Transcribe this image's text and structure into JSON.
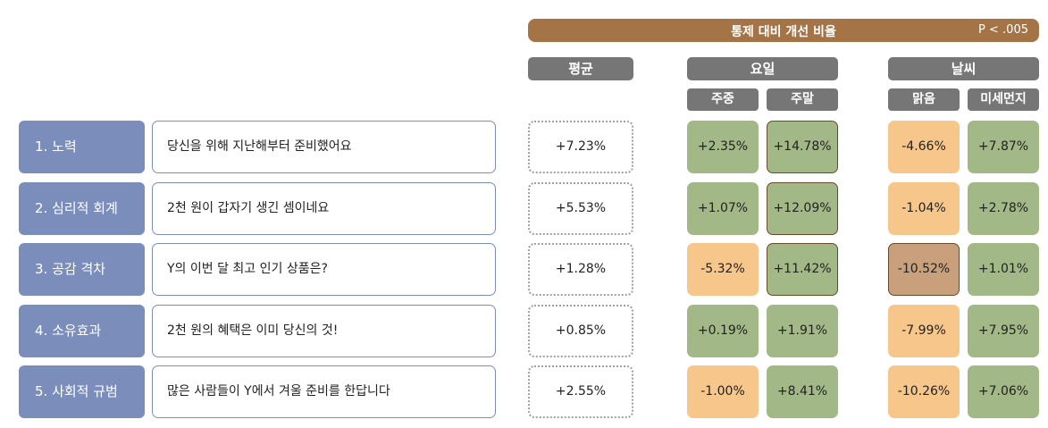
{
  "header": {
    "title": "통제 대비 개선 비율",
    "pvalue": "P < .005",
    "avg": "평균",
    "day": "요일",
    "weather": "날씨",
    "weekday": "주중",
    "weekend": "주말",
    "clear": "맑음",
    "dust": "미세먼지"
  },
  "colors": {
    "banner": "#a47446",
    "header_gray": "#767676",
    "label_blue": "#7b8ebb",
    "positive_green": "#a3b887",
    "negative_orange": "#f7c68a",
    "strong_negative_brown": "#c8a07c"
  },
  "rows": [
    {
      "label": "1. 노력",
      "text": "당신을 위해 지난해부터 준비했어요",
      "avg": "+7.23%",
      "weekday": "+2.35%",
      "weekend": "+14.78%",
      "clear": "-4.66%",
      "dust": "+7.87%"
    },
    {
      "label": "2. 심리적 회계",
      "text": "2천 원이 갑자기 생긴 셈이네요",
      "avg": "+5.53%",
      "weekday": "+1.07%",
      "weekend": "+12.09%",
      "clear": "-1.04%",
      "dust": "+2.78%"
    },
    {
      "label": "3. 공감 격차",
      "text": "Y의 이번 달 최고 인기 상품은?",
      "avg": "+1.28%",
      "weekday": "-5.32%",
      "weekend": "+11.42%",
      "clear": "-10.52%",
      "dust": "+1.01%"
    },
    {
      "label": "4. 소유효과",
      "text": "2천 원의 혜택은 이미 당신의 것!",
      "avg": "+0.85%",
      "weekday": "+0.19%",
      "weekend": "+1.91%",
      "clear": "-7.99%",
      "dust": "+7.95%"
    },
    {
      "label": "5. 사회적 규범",
      "text": "많은 사람들이 Y에서 겨울 준비를 한답니다",
      "avg": "+2.55%",
      "weekday": "-1.00%",
      "weekend": "+8.41%",
      "clear": "-10.26%",
      "dust": "+7.06%"
    }
  ]
}
